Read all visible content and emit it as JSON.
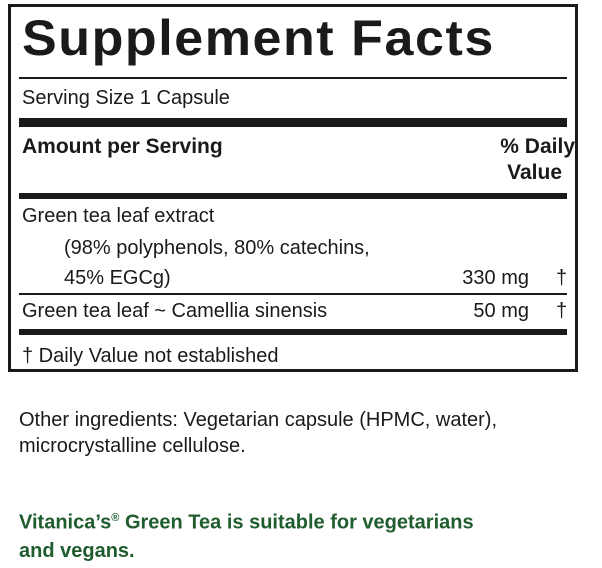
{
  "title": "Supplement Facts",
  "serving_size": "Serving Size 1 Capsule",
  "header": {
    "amount_label": "Amount per Serving",
    "daily_value_line1": "% Daily",
    "daily_value_line2": "Value"
  },
  "ingredients": [
    {
      "name_line1": "Green tea leaf extract",
      "name_line2": "(98% polyphenols, 80% catechins,",
      "name_line3": "45% EGCg)",
      "amount": "330 mg",
      "dv": "†"
    },
    {
      "name_line1": "Green tea leaf ~ Camellia sinensis",
      "amount": "50 mg",
      "dv": "†"
    }
  ],
  "footnote": "† Daily Value not established",
  "other_ingredients": {
    "line1": "Other ingredients: Vegetarian capsule (HPMC, water),",
    "line2": "microcrystalline cellulose."
  },
  "claim": {
    "brand": "Vitanica’s",
    "reg_mark": "®",
    "line1_rest": " Green Tea is suitable for vegetarians",
    "line2": "and vegans."
  },
  "colors": {
    "text": "#1a1a1a",
    "claim_green": "#1f5c2e"
  }
}
